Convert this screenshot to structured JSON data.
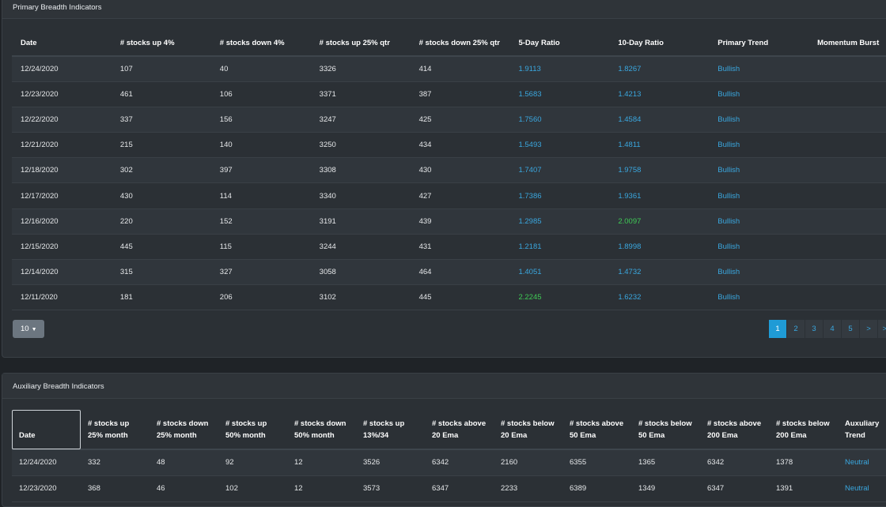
{
  "primary": {
    "title": "Primary Breadth Indicators",
    "columns": [
      "Date",
      "# stocks up 4%",
      "# stocks down 4%",
      "# stocks up 25% qtr",
      "# stocks down 25% qtr",
      "5-Day Ratio",
      "10-Day Ratio",
      "Primary Trend",
      "Momentum Burst"
    ],
    "rows": [
      [
        "12/24/2020",
        "107",
        "40",
        "3326",
        "414",
        "1.9113",
        "1.8267",
        "Bullish",
        ""
      ],
      [
        "12/23/2020",
        "461",
        "106",
        "3371",
        "387",
        "1.5683",
        "1.4213",
        "Bullish",
        ""
      ],
      [
        "12/22/2020",
        "337",
        "156",
        "3247",
        "425",
        "1.7560",
        "1.4584",
        "Bullish",
        ""
      ],
      [
        "12/21/2020",
        "215",
        "140",
        "3250",
        "434",
        "1.5493",
        "1.4811",
        "Bullish",
        ""
      ],
      [
        "12/18/2020",
        "302",
        "397",
        "3308",
        "430",
        "1.7407",
        "1.9758",
        "Bullish",
        ""
      ],
      [
        "12/17/2020",
        "430",
        "114",
        "3340",
        "427",
        "1.7386",
        "1.9361",
        "Bullish",
        ""
      ],
      [
        "12/16/2020",
        "220",
        "152",
        "3191",
        "439",
        "1.2985",
        "2.0097",
        "Bullish",
        ""
      ],
      [
        "12/15/2020",
        "445",
        "115",
        "3244",
        "431",
        "1.2181",
        "1.8998",
        "Bullish",
        ""
      ],
      [
        "12/14/2020",
        "315",
        "327",
        "3058",
        "464",
        "1.4051",
        "1.4732",
        "Bullish",
        ""
      ],
      [
        "12/11/2020",
        "181",
        "206",
        "3102",
        "445",
        "2.2245",
        "1.6232",
        "Bullish",
        ""
      ]
    ],
    "row_ratio_colors": [
      [
        "blue",
        "blue"
      ],
      [
        "blue",
        "blue"
      ],
      [
        "blue",
        "blue"
      ],
      [
        "blue",
        "blue"
      ],
      [
        "blue",
        "blue"
      ],
      [
        "blue",
        "blue"
      ],
      [
        "blue",
        "green"
      ],
      [
        "blue",
        "blue"
      ],
      [
        "blue",
        "blue"
      ],
      [
        "green",
        "blue"
      ]
    ],
    "page_size": "10",
    "pages": [
      "1",
      "2",
      "3",
      "4",
      "5",
      ">",
      ">>"
    ]
  },
  "auxiliary": {
    "title": "Auxiliary Breadth Indicators",
    "columns": [
      [
        "Date"
      ],
      [
        "# stocks up",
        "25% month"
      ],
      [
        "# stocks down",
        "25% month"
      ],
      [
        "# stocks up",
        "50% month"
      ],
      [
        "# stocks down",
        "50% month"
      ],
      [
        "# stocks up",
        "13%/34"
      ],
      [
        "# stocks above",
        "20 Ema"
      ],
      [
        "# stocks below",
        "20 Ema"
      ],
      [
        "# stocks above",
        "50 Ema"
      ],
      [
        "# stocks below",
        "50 Ema"
      ],
      [
        "# stocks above",
        "200 Ema"
      ],
      [
        "# stocks below",
        "200 Ema"
      ],
      [
        "Auxuliary",
        "Trend"
      ]
    ],
    "rows": [
      [
        "12/24/2020",
        "332",
        "48",
        "92",
        "12",
        "3526",
        "6342",
        "2160",
        "6355",
        "1365",
        "6342",
        "1378",
        "Neutral"
      ],
      [
        "12/23/2020",
        "368",
        "46",
        "102",
        "12",
        "3573",
        "6347",
        "2233",
        "6389",
        "1349",
        "6347",
        "1391",
        "Neutral"
      ]
    ]
  },
  "colors": {
    "blue": "#3aa7df",
    "green": "#3fca55",
    "active_page": "#1f9bd6"
  }
}
